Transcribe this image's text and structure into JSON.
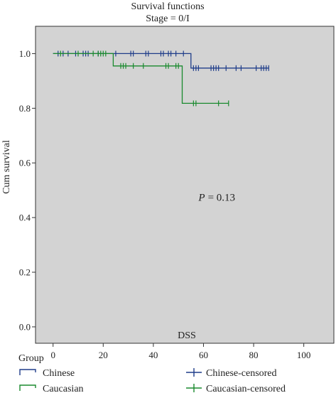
{
  "chart_data": {
    "type": "line",
    "title": "Survival functions",
    "subtitle": "Stage = 0/I",
    "xlabel": "DSS",
    "ylabel": "Cum survival",
    "xlim": [
      -7,
      112
    ],
    "ylim": [
      -0.06,
      1.1
    ],
    "xticks": [
      "0",
      "20",
      "40",
      "60",
      "80",
      "100"
    ],
    "yticks": [
      "0.0",
      "0.2",
      "0.4",
      "0.6",
      "0.8",
      "1.0"
    ],
    "grid": false,
    "background": "#d3d3d3",
    "annotation": {
      "prefix": "P",
      "value": "= 0.13",
      "x": 58,
      "y": 0.475
    },
    "legend": {
      "title": "Group",
      "placement": "bottom",
      "items": [
        {
          "label": "Chinese",
          "kind": "step",
          "series": 0
        },
        {
          "label": "Caucasian",
          "kind": "step",
          "series": 1
        },
        {
          "label": "Chinese-censored",
          "kind": "censor",
          "series": 0
        },
        {
          "label": "Caucasian-censored",
          "kind": "censor",
          "series": 1
        }
      ]
    },
    "series": [
      {
        "name": "Chinese",
        "color": "#1f3d8a",
        "steps": [
          [
            0,
            1.0
          ],
          [
            55,
            1.0
          ],
          [
            55,
            0.947
          ],
          [
            86,
            0.947
          ]
        ],
        "censored": [
          [
            2,
            1.0
          ],
          [
            4,
            1.0
          ],
          [
            6,
            1.0
          ],
          [
            9,
            1.0
          ],
          [
            12,
            1.0
          ],
          [
            13,
            1.0
          ],
          [
            14,
            1.0
          ],
          [
            18,
            1.0
          ],
          [
            25,
            1.0
          ],
          [
            31,
            1.0
          ],
          [
            32,
            1.0
          ],
          [
            37,
            1.0
          ],
          [
            38,
            1.0
          ],
          [
            43,
            1.0
          ],
          [
            44,
            1.0
          ],
          [
            46,
            1.0
          ],
          [
            47,
            1.0
          ],
          [
            49,
            1.0
          ],
          [
            52,
            1.0
          ],
          [
            56,
            0.947
          ],
          [
            57,
            0.947
          ],
          [
            58,
            0.947
          ],
          [
            63,
            0.947
          ],
          [
            64,
            0.947
          ],
          [
            65,
            0.947
          ],
          [
            66,
            0.947
          ],
          [
            69,
            0.947
          ],
          [
            73,
            0.947
          ],
          [
            75,
            0.947
          ],
          [
            81,
            0.947
          ],
          [
            83,
            0.947
          ],
          [
            84,
            0.947
          ],
          [
            85,
            0.947
          ],
          [
            86,
            0.947
          ]
        ]
      },
      {
        "name": "Caucasian",
        "color": "#1a8a2e",
        "steps": [
          [
            0,
            1.0
          ],
          [
            24,
            1.0
          ],
          [
            24,
            0.955
          ],
          [
            51.5,
            0.955
          ],
          [
            51.5,
            0.818
          ],
          [
            70,
            0.818
          ]
        ],
        "censored": [
          [
            3,
            1.0
          ],
          [
            10,
            1.0
          ],
          [
            16,
            1.0
          ],
          [
            18,
            1.0
          ],
          [
            19,
            1.0
          ],
          [
            20,
            1.0
          ],
          [
            21,
            1.0
          ],
          [
            27,
            0.955
          ],
          [
            28,
            0.955
          ],
          [
            29,
            0.955
          ],
          [
            32,
            0.955
          ],
          [
            36,
            0.955
          ],
          [
            45,
            0.955
          ],
          [
            46,
            0.955
          ],
          [
            49,
            0.955
          ],
          [
            50,
            0.955
          ],
          [
            56,
            0.818
          ],
          [
            57,
            0.818
          ],
          [
            66,
            0.818
          ],
          [
            70,
            0.818
          ]
        ]
      }
    ]
  }
}
